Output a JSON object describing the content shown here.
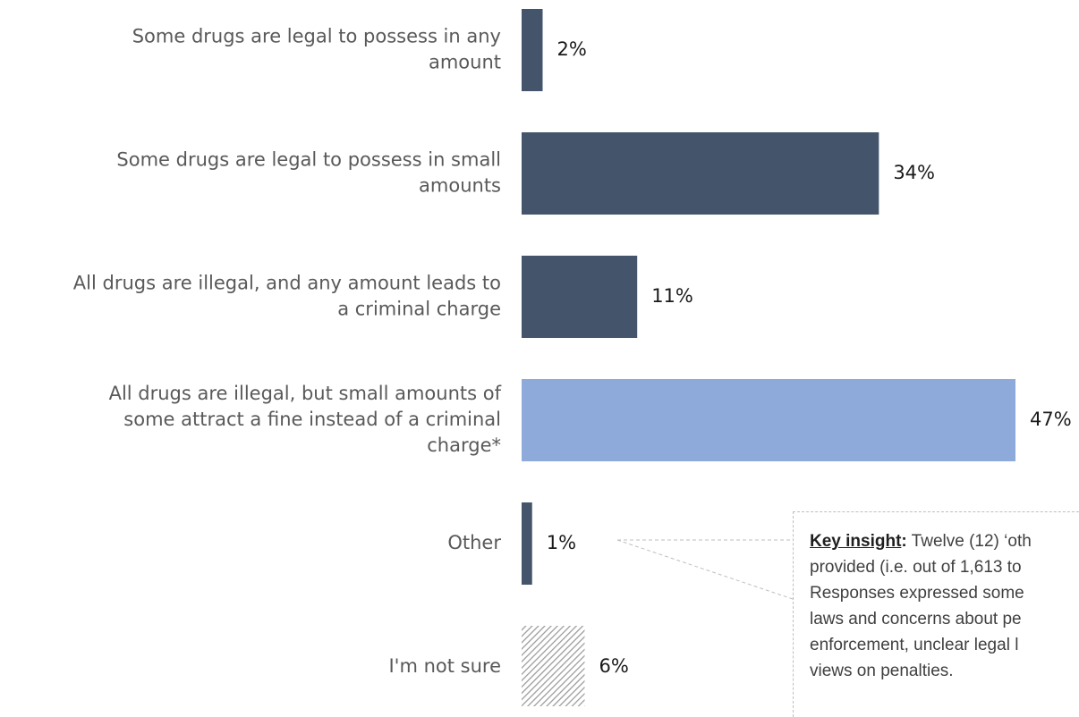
{
  "chart_data": {
    "type": "bar",
    "orientation": "horizontal",
    "categories": [
      [
        "Some drugs are legal to possess in any",
        "amount"
      ],
      [
        "Some drugs are legal to possess in small",
        "amounts"
      ],
      [
        "All drugs are illegal, and any amount leads to",
        "a criminal charge"
      ],
      [
        "All drugs are illegal, but small amounts of",
        "some attract a fine instead of a criminal",
        "charge*"
      ],
      [
        "Other"
      ],
      [
        "I'm not sure"
      ]
    ],
    "values": [
      2,
      34,
      11,
      47,
      1,
      6
    ],
    "value_labels": [
      "2%",
      "34%",
      "11%",
      "47%",
      "1%",
      "6%"
    ],
    "unit": "%",
    "colors": [
      "#44546a",
      "#44546a",
      "#44546a",
      "#8eaadb",
      "#44546a",
      "hatched-grey"
    ],
    "highlight_index": 3,
    "grid": false,
    "legend": "none"
  },
  "annotation": {
    "keyword": "Key insight",
    "colon": ":",
    "lines": [
      " Twelve (12) ‘oth",
      "provided (i.e. out of 1,613 to",
      "Responses expressed some",
      "laws and concerns about pe",
      "enforcement, unclear legal l",
      "views on penalties."
    ]
  }
}
